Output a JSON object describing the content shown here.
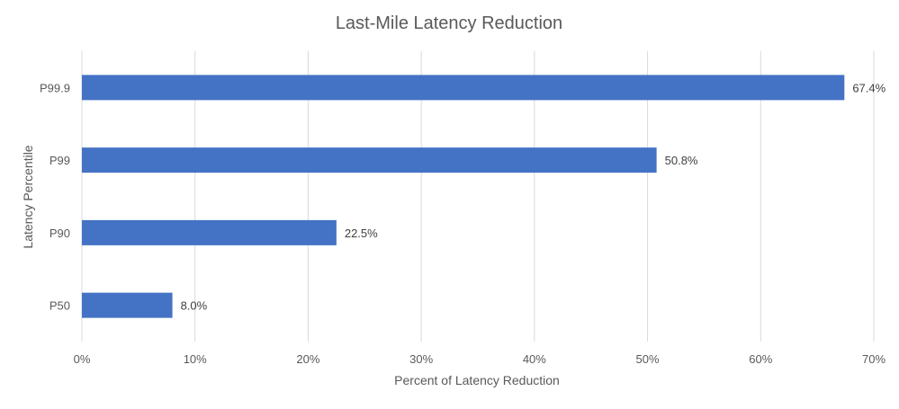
{
  "chart_data": {
    "type": "bar",
    "orientation": "horizontal",
    "title": "Last-Mile Latency Reduction",
    "xlabel": "Percent of Latency Reduction",
    "ylabel": "Latency Percentile",
    "categories": [
      "P99.9",
      "P99",
      "P90",
      "P50"
    ],
    "values": [
      67.4,
      50.8,
      22.5,
      8.0
    ],
    "data_labels": [
      "67.4%",
      "50.8%",
      "22.5%",
      "8.0%"
    ],
    "xlim": [
      0,
      70
    ],
    "x_ticks": [
      "0%",
      "10%",
      "20%",
      "30%",
      "40%",
      "50%",
      "60%",
      "70%"
    ],
    "grid": "vertical",
    "legend": "none",
    "bar_color": "#4472c4"
  }
}
